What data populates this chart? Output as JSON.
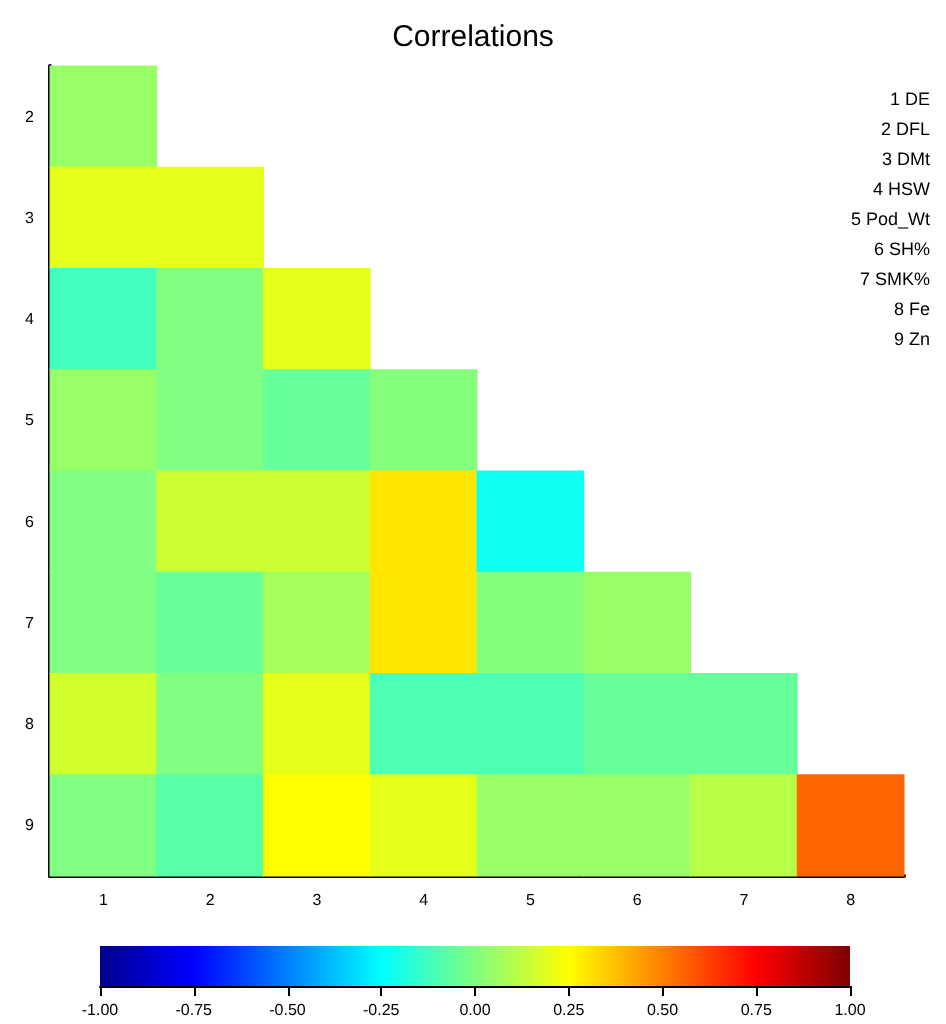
{
  "chart_data": {
    "type": "heatmap",
    "title": "Correlations",
    "categories": [
      "1",
      "2",
      "3",
      "4",
      "5",
      "6",
      "7",
      "8"
    ],
    "y_categories": [
      "2",
      "3",
      "4",
      "5",
      "6",
      "7",
      "8",
      "9"
    ],
    "cells": [
      [
        0.05,
        null,
        null,
        null,
        null,
        null,
        null,
        null
      ],
      [
        0.2,
        0.2,
        null,
        null,
        null,
        null,
        null,
        null
      ],
      [
        -0.12,
        0.0,
        0.2,
        null,
        null,
        null,
        null,
        null
      ],
      [
        0.05,
        0.0,
        -0.05,
        0.01,
        null,
        null,
        null,
        null
      ],
      [
        0.0,
        0.15,
        0.15,
        0.3,
        -0.22,
        null,
        null,
        null
      ],
      [
        0.0,
        -0.05,
        0.07,
        0.3,
        0.01,
        0.05,
        null,
        null
      ],
      [
        0.16,
        0.0,
        0.2,
        -0.1,
        -0.1,
        -0.05,
        -0.05,
        null
      ],
      [
        0.0,
        -0.08,
        0.25,
        0.2,
        0.05,
        0.05,
        0.11,
        0.55
      ]
    ],
    "clim": [
      -1,
      1
    ],
    "cticks": [
      {
        "value": -1,
        "label": "-1.00"
      },
      {
        "value": -0.75,
        "label": "-0.75"
      },
      {
        "value": -0.5,
        "label": "-0.50"
      },
      {
        "value": -0.25,
        "label": "-0.25"
      },
      {
        "value": 0,
        "label": "0.00"
      },
      {
        "value": 0.25,
        "label": "0.25"
      },
      {
        "value": 0.5,
        "label": "0.50"
      },
      {
        "value": 0.75,
        "label": "0.75"
      },
      {
        "value": 1,
        "label": "1.00"
      }
    ],
    "annotations": [
      "1 DE",
      "2 DFL",
      "3 DMt",
      "4 HSW",
      "5 Pod_Wt",
      "6 SH%",
      "7 SMK%",
      "8 Fe",
      "9 Zn"
    ]
  }
}
